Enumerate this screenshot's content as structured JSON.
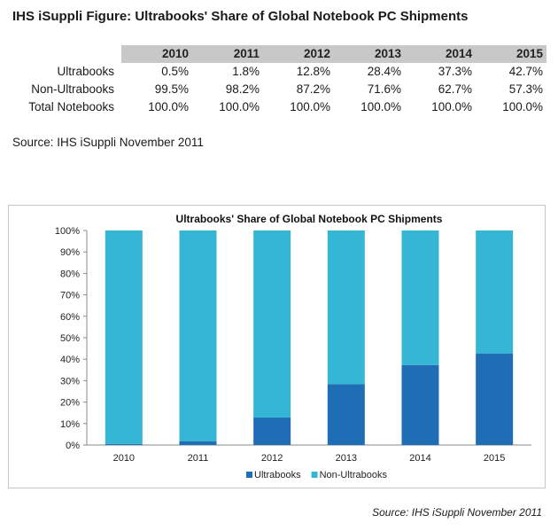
{
  "figure_title": "IHS iSuppli Figure: Ultrabooks' Share of Global Notebook PC Shipments",
  "table": {
    "years": [
      "2010",
      "2011",
      "2012",
      "2013",
      "2014",
      "2015"
    ],
    "rows": [
      {
        "label": "Ultrabooks",
        "values": [
          "0.5%",
          "1.8%",
          "12.8%",
          "28.4%",
          "37.3%",
          "42.7%"
        ]
      },
      {
        "label": "Non-Ultrabooks",
        "values": [
          "99.5%",
          "98.2%",
          "87.2%",
          "71.6%",
          "62.7%",
          "57.3%"
        ]
      },
      {
        "label": "Total Notebooks",
        "values": [
          "100.0%",
          "100.0%",
          "100.0%",
          "100.0%",
          "100.0%",
          "100.0%"
        ]
      }
    ]
  },
  "source_top": "Source: IHS iSuppli November 2011",
  "chart_data": {
    "type": "bar",
    "stacked": true,
    "title": "Ultrabooks' Share of Global Notebook PC Shipments",
    "categories": [
      "2010",
      "2011",
      "2012",
      "2013",
      "2014",
      "2015"
    ],
    "series": [
      {
        "name": "Ultrabooks",
        "values": [
          0.5,
          1.8,
          12.8,
          28.4,
          37.3,
          42.7
        ],
        "color": "#1f6eb5"
      },
      {
        "name": "Non-Ultrabooks",
        "values": [
          99.5,
          98.2,
          87.2,
          71.6,
          62.7,
          57.3
        ],
        "color": "#35b6d5"
      }
    ],
    "ylim": [
      0,
      100
    ],
    "yticks": [
      "0%",
      "10%",
      "20%",
      "30%",
      "40%",
      "50%",
      "60%",
      "70%",
      "80%",
      "90%",
      "100%"
    ],
    "xlabel": "",
    "ylabel": "",
    "legend_position": "bottom",
    "grid": false
  },
  "source_bottom": "Source: IHS iSuppli November 2011"
}
